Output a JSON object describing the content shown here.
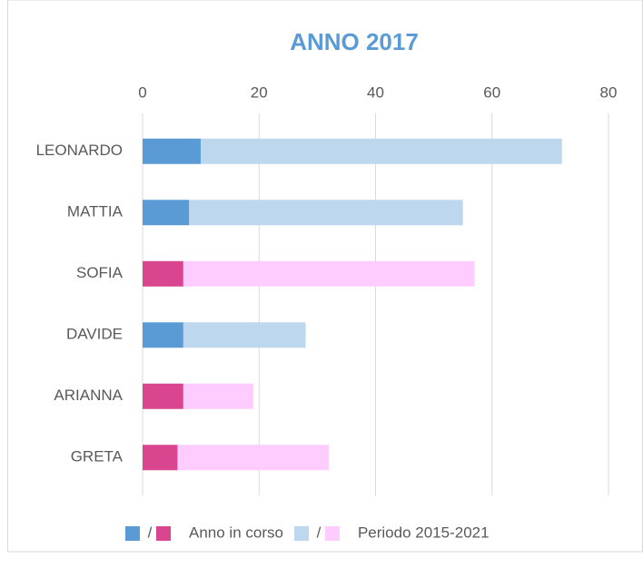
{
  "chart_data": {
    "type": "stacked_barh",
    "title": "ANNO 2017",
    "categories": [
      "LEONARDO",
      "MATTIA",
      "SOFIA",
      "DAVIDE",
      "ARIANNA",
      "GRETA"
    ],
    "series": [
      {
        "name": "Anno in corso",
        "colors": [
          "#5b9bd5",
          "#5b9bd5",
          "#d9468f",
          "#5b9bd5",
          "#d9468f",
          "#d9468f"
        ],
        "values": [
          10,
          8,
          7,
          7,
          7,
          6
        ]
      },
      {
        "name": "Periodo 2015-2021",
        "colors": [
          "#bdd7ee",
          "#bdd7ee",
          "#ffccff",
          "#bdd7ee",
          "#ffccff",
          "#ffccff"
        ],
        "values": [
          62,
          47,
          50,
          21,
          12,
          26
        ]
      }
    ],
    "legend_separator": "/",
    "xlim": [
      0,
      80
    ],
    "xticks": [
      0,
      20,
      40,
      60,
      80
    ],
    "grid": true,
    "legend": "bottom"
  }
}
